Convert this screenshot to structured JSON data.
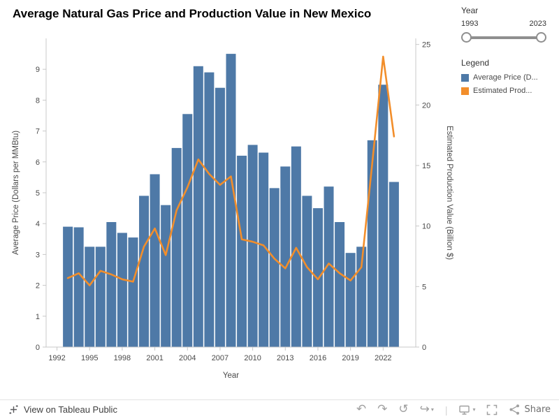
{
  "title": "Average Natural Gas Price and Production Value in New Mexico",
  "filter": {
    "label": "Year",
    "min": "1993",
    "max": "2023"
  },
  "legend": {
    "title": "Legend",
    "items": [
      {
        "label": "Average Price (D...",
        "color": "#4e79a7"
      },
      {
        "label": "Estimated Prod...",
        "color": "#f28e2b"
      }
    ]
  },
  "footer": {
    "view_label": "View on Tableau Public",
    "share_label": "Share",
    "icons": [
      "tableau-logo-icon",
      "undo-icon",
      "redo-icon",
      "revert-icon",
      "refresh-icon",
      "download-icon",
      "fullscreen-icon",
      "share-icon"
    ]
  },
  "chart_data": {
    "type": "bar+line combo",
    "title": "Average Natural Gas Price and Production Value in New Mexico",
    "xlabel": "Year",
    "y_left_label": "Average Price (Dollars per MMBtu)",
    "y_right_label": "Estimated Production Value (Billion $)",
    "x_range": [
      1991,
      2025
    ],
    "x_ticks": [
      1992,
      1995,
      1998,
      2001,
      2004,
      2007,
      2010,
      2013,
      2016,
      2019,
      2022
    ],
    "y_left_ticks": [
      0,
      1,
      2,
      3,
      4,
      5,
      6,
      7,
      8,
      9
    ],
    "y_left_max": 10,
    "y_right_ticks": [
      0,
      5,
      10,
      15,
      20,
      25
    ],
    "y_right_max": 25.5,
    "years": [
      1993,
      1994,
      1995,
      1996,
      1997,
      1998,
      1999,
      2000,
      2001,
      2002,
      2003,
      2004,
      2005,
      2006,
      2007,
      2008,
      2009,
      2010,
      2011,
      2012,
      2013,
      2014,
      2015,
      2016,
      2017,
      2018,
      2019,
      2020,
      2021,
      2022,
      2023
    ],
    "series": [
      {
        "name": "Average Price (Dollars per MMBtu)",
        "type": "bar",
        "color": "#4e79a7",
        "values": [
          3.9,
          3.88,
          3.25,
          3.25,
          4.05,
          3.7,
          3.55,
          4.9,
          5.6,
          4.6,
          6.45,
          7.55,
          9.1,
          8.9,
          8.4,
          9.5,
          6.2,
          6.55,
          6.3,
          5.15,
          5.85,
          6.5,
          4.9,
          4.5,
          5.2,
          4.05,
          3.05,
          3.25,
          6.7,
          8.5,
          5.35
        ]
      },
      {
        "name": "Estimated Production Value (Billion $)",
        "type": "line",
        "color": "#f28e2b",
        "values": [
          5.7,
          6.1,
          5.1,
          6.3,
          6.0,
          5.6,
          5.4,
          8.3,
          9.8,
          7.6,
          11.3,
          13.2,
          15.5,
          14.3,
          13.4,
          14.1,
          8.9,
          8.7,
          8.4,
          7.3,
          6.5,
          8.2,
          6.6,
          5.6,
          6.9,
          6.1,
          5.5,
          6.6,
          15.2,
          24.0,
          17.4
        ]
      }
    ]
  }
}
